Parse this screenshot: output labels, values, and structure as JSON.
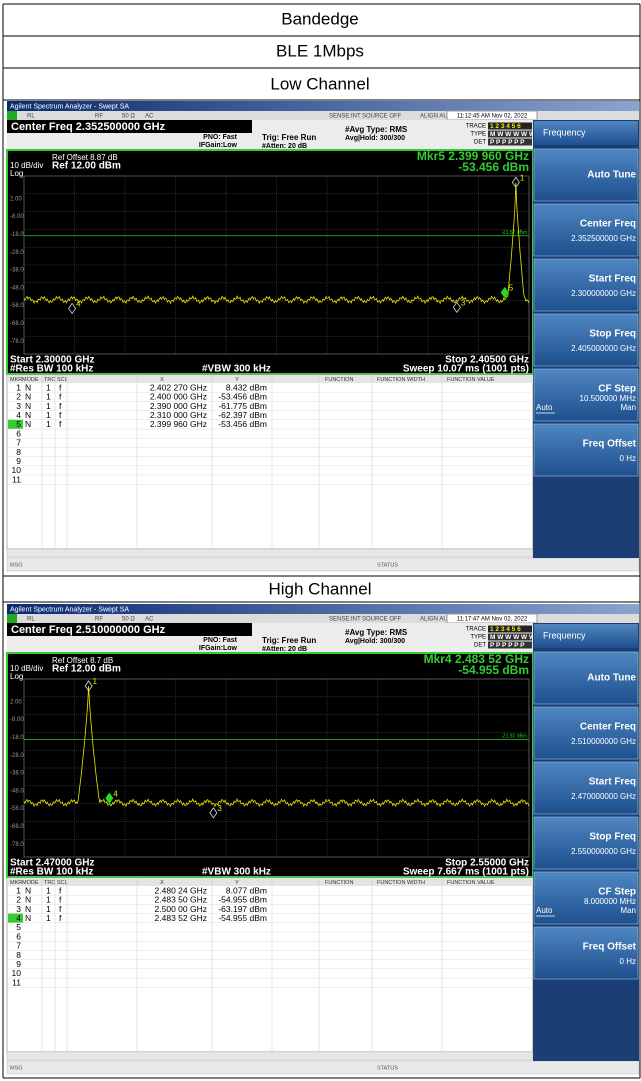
{
  "title_rows": [
    "Bandedge",
    "BLE 1Mbps"
  ],
  "panels": [
    {
      "caption": "Low Channel",
      "app_title": "Agilent Spectrum Analyzer - Swept SA",
      "status_top": [
        "RL",
        "RF",
        "50 Ω",
        "AC",
        "SENSE:INT",
        "SOURCE OFF",
        "ALIGN AUTO"
      ],
      "timestamp": "11:12:45 AM Nov 02, 2022",
      "center_freq": "Center Freq 2.352500000 GHz",
      "pno": "PNO: Fast",
      "ifgain": "IFGain:Low",
      "trig": "Trig: Free Run",
      "atten": "#Atten: 20 dB",
      "avg_type": "#Avg Type: RMS",
      "avg_hold": "Avg|Hold: 300/300",
      "trace_labels": [
        "TRACE",
        "TYPE",
        "DET"
      ],
      "trace_values": [
        "1 2 3 4 5 6",
        "M W W W W W",
        "P P P P P P"
      ],
      "ref_offset": "Ref Offset 8.87 dB",
      "scale": "10 dB/div",
      "ref": "Ref 12.00 dBm",
      "log": "Log",
      "marker_readout": [
        "Mkr5 2.399 960 GHz",
        "-53.456 dBm"
      ],
      "xlim": [
        2.3,
        2.405
      ],
      "ylim": [
        -88,
        12
      ],
      "yticks": [
        {
          "value": 2,
          "label": "2.00"
        },
        {
          "value": -8,
          "label": "-8.00"
        },
        {
          "value": -18,
          "label": "-18.0"
        },
        {
          "value": -28,
          "label": "-28.0"
        },
        {
          "value": -38,
          "label": "-38.0"
        },
        {
          "value": -48,
          "label": "-48.0"
        },
        {
          "value": -58,
          "label": "-58.0"
        },
        {
          "value": -68,
          "label": "-68.0"
        },
        {
          "value": -78,
          "label": "-78.0"
        }
      ],
      "limit": {
        "value": -21.57,
        "label": "-21.57 dBm"
      },
      "markers": [
        {
          "label": "1",
          "x": 2.40227,
          "y": 8.432
        },
        {
          "label": "4",
          "x": 2.31,
          "y": -62.397
        },
        {
          "label": "3",
          "x": 2.39,
          "y": -61.775
        },
        {
          "label": "5",
          "x": 2.39996,
          "y": -53.456,
          "active": true
        }
      ],
      "start": "Start 2.30000 GHz",
      "stop": "Stop 2.40500 GHz",
      "rbw": "#Res BW 100 kHz",
      "vbw": "#VBW 300 kHz",
      "sweep": "Sweep  10.07 ms (1001 pts)",
      "table_header": [
        "MKR",
        "MODE",
        "TRC",
        "SCL",
        "X",
        "Y",
        "FUNCTION",
        "FUNCTION WIDTH",
        "FUNCTION VALUE"
      ],
      "table_rows": [
        [
          "1",
          "N",
          "1",
          "f",
          "2.402 270 GHz",
          "8.432 dBm"
        ],
        [
          "2",
          "N",
          "1",
          "f",
          "2.400 000 GHz",
          "-53.456 dBm"
        ],
        [
          "3",
          "N",
          "1",
          "f",
          "2.390 000 GHz",
          "-61.775 dBm"
        ],
        [
          "4",
          "N",
          "1",
          "f",
          "2.310 000 GHz",
          "-62.397 dBm"
        ],
        [
          "5",
          "N",
          "1",
          "f",
          "2.399 960 GHz",
          "-53.456 dBm"
        ]
      ],
      "empty_rows": [
        "6",
        "7",
        "8",
        "9",
        "10",
        "11"
      ],
      "active_row": 4,
      "msg": "MSG",
      "status": "STATUS",
      "softkey_title": "Frequency",
      "softkeys": [
        {
          "label": "Auto Tune"
        },
        {
          "label": "Center Freq",
          "value": "2.352500000 GHz"
        },
        {
          "label": "Start Freq",
          "value": "2.300000000 GHz"
        },
        {
          "label": "Stop Freq",
          "value": "2.405000000 GHz"
        },
        {
          "label": "CF Step",
          "value": "10.500000 MHz",
          "options": [
            "Auto",
            "Man"
          ]
        },
        {
          "label": "Freq Offset",
          "value": "0 Hz"
        }
      ]
    },
    {
      "caption": "High Channel",
      "app_title": "Agilent Spectrum Analyzer - Swept SA",
      "status_top": [
        "RL",
        "RF",
        "50 Ω",
        "AC",
        "SENSE:INT",
        "SOURCE OFF",
        "ALIGN AUTO"
      ],
      "timestamp": "11:17:47 AM Nov 02, 2022",
      "center_freq": "Center Freq 2.510000000 GHz",
      "pno": "PNO: Fast",
      "ifgain": "IFGain:Low",
      "trig": "Trig: Free Run",
      "atten": "#Atten: 20 dB",
      "avg_type": "#Avg Type: RMS",
      "avg_hold": "Avg|Hold: 300/300",
      "trace_labels": [
        "TRACE",
        "TYPE",
        "DET"
      ],
      "trace_values": [
        "1 2 3 4 5 6",
        "M W W W W W",
        "P P P P P P"
      ],
      "ref_offset": "Ref Offset 8.7 dB",
      "scale": "10 dB/div",
      "ref": "Ref 12.00 dBm",
      "log": "Log",
      "marker_readout": [
        "Mkr4 2.483 52 GHz",
        "-54.955 dBm"
      ],
      "xlim": [
        2.47,
        2.55
      ],
      "ylim": [
        -88,
        12
      ],
      "yticks": [
        {
          "value": 2,
          "label": "2.00"
        },
        {
          "value": -8,
          "label": "-8.00"
        },
        {
          "value": -18,
          "label": "-18.0"
        },
        {
          "value": -28,
          "label": "-28.0"
        },
        {
          "value": -38,
          "label": "-38.0"
        },
        {
          "value": -48,
          "label": "-48.0"
        },
        {
          "value": -58,
          "label": "-58.0"
        },
        {
          "value": -68,
          "label": "-68.0"
        },
        {
          "value": -78,
          "label": "-78.0"
        }
      ],
      "limit": {
        "value": -21.92,
        "label": "-21.92 dBm"
      },
      "markers": [
        {
          "label": "1",
          "x": 2.48024,
          "y": 8.077
        },
        {
          "label": "4",
          "x": 2.48352,
          "y": -54.955,
          "active": true
        },
        {
          "label": "3",
          "x": 2.5,
          "y": -63.197
        }
      ],
      "start": "Start 2.47000 GHz",
      "stop": "Stop 2.55000 GHz",
      "rbw": "#Res BW 100 kHz",
      "vbw": "#VBW 300 kHz",
      "sweep": "Sweep  7.667 ms (1001 pts)",
      "table_header": [
        "MKR",
        "MODE",
        "TRC",
        "SCL",
        "X",
        "Y",
        "FUNCTION",
        "FUNCTION WIDTH",
        "FUNCTION VALUE"
      ],
      "table_rows": [
        [
          "1",
          "N",
          "1",
          "f",
          "2.480 24 GHz",
          "8.077 dBm"
        ],
        [
          "2",
          "N",
          "1",
          "f",
          "2.483 50 GHz",
          "-54.955 dBm"
        ],
        [
          "3",
          "N",
          "1",
          "f",
          "2.500 00 GHz",
          "-63.197 dBm"
        ],
        [
          "4",
          "N",
          "1",
          "f",
          "2.483 52 GHz",
          "-54.955 dBm"
        ]
      ],
      "empty_rows": [
        "5",
        "6",
        "7",
        "8",
        "9",
        "10",
        "11"
      ],
      "active_row": 3,
      "msg": "MSG",
      "status": "STATUS",
      "softkey_title": "Frequency",
      "softkeys": [
        {
          "label": "Auto Tune"
        },
        {
          "label": "Center Freq",
          "value": "2.510000000 GHz"
        },
        {
          "label": "Start Freq",
          "value": "2.470000000 GHz"
        },
        {
          "label": "Stop Freq",
          "value": "2.550000000 GHz"
        },
        {
          "label": "CF Step",
          "value": "8.000000 MHz",
          "options": [
            "Auto",
            "Man"
          ]
        },
        {
          "label": "Freq Offset",
          "value": "0 Hz"
        }
      ]
    }
  ]
}
